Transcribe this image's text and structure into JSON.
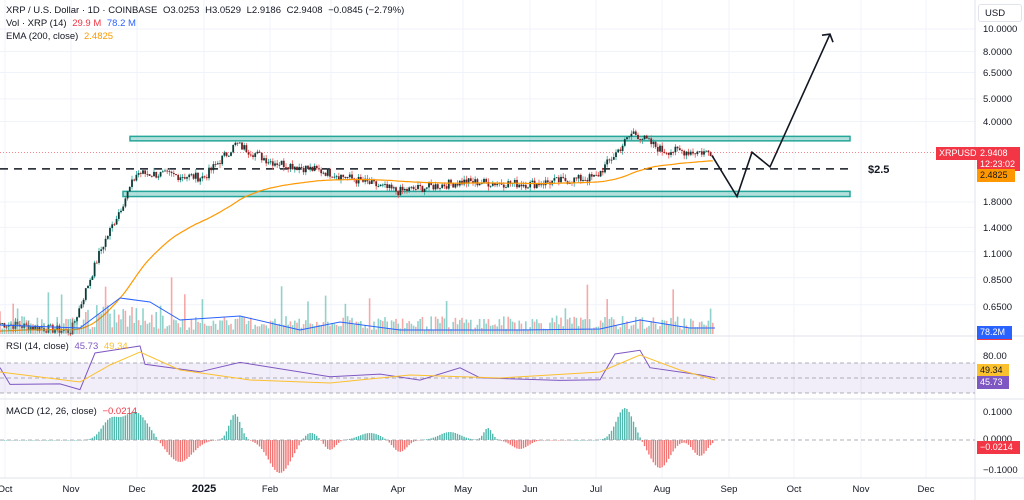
{
  "header": {
    "symbol_title": "XRP / U.S. Dollar · 1D · COINBASE",
    "open": "O3.0253",
    "high": "H3.0529",
    "low": "L2.9186",
    "close": "C2.9408",
    "change": "−0.0845 (−2.79%)",
    "volume_label": "Vol · XRP (14)",
    "volume_value": "29.9 M",
    "volume_ma": "78.2 M",
    "ema_label": "EMA (200, close)",
    "ema_value": "2.4825"
  },
  "price_axis": {
    "currency": "USD",
    "ticks": [
      "10.0000",
      "8.0000",
      "6.5000",
      "5.0000",
      "4.0000",
      "1.8000",
      "1.4000",
      "1.1000",
      "0.8500",
      "0.6500"
    ],
    "symbol_tag": "XRPUSD",
    "last_price": "2.9408",
    "countdown": "12:23:02",
    "ema_tag": "2.4825",
    "volume_tag": "78.2M"
  },
  "rsi": {
    "label": "RSI (14, close)",
    "value": "45.73",
    "ma_value": "49.34",
    "ticks": [
      "80.00"
    ],
    "rsi_tag": "45.73",
    "ma_tag": "49.34"
  },
  "macd": {
    "label": "MACD (12, 26, close)",
    "value": "−0.0214",
    "ticks": [
      "0.1000",
      "0.0000",
      "−0.1000"
    ],
    "tag": "−0.0214"
  },
  "annotations": {
    "level_label": "$2.5"
  },
  "time_axis": {
    "labels": [
      "Oct",
      "Nov",
      "Dec",
      "2025",
      "Feb",
      "Mar",
      "Apr",
      "May",
      "Jun",
      "Jul",
      "Aug",
      "Sep",
      "Oct",
      "Nov",
      "Dec"
    ]
  },
  "colors": {
    "up": "#26a69a",
    "down": "#ef5350",
    "ema": "#ff9800",
    "volume_ma": "#2962ff",
    "rsi": "#7e57c2",
    "rsi_ma": "#fbc02d",
    "zone": "#26a69a"
  },
  "chart_data": {
    "type": "candlestick",
    "title": "XRP / U.S. Dollar · 1D · COINBASE",
    "xlabel": "",
    "ylabel": "USD",
    "y_scale": "log",
    "ylim": [
      0.45,
      11.5
    ],
    "x_ticks": [
      "Oct",
      "Nov",
      "Dec",
      "2025",
      "Feb",
      "Mar",
      "Apr",
      "May",
      "Jun",
      "Jul",
      "Aug",
      "Sep",
      "Oct",
      "Nov",
      "Dec"
    ],
    "y_ticks": [
      10.0,
      8.0,
      6.5,
      5.0,
      4.0,
      1.8,
      1.4,
      1.1,
      0.85,
      0.65
    ],
    "approx_close_series": {
      "x": [
        "Oct 2024",
        "Nov 2024",
        "mid Nov 2024",
        "Dec 2024",
        "2025",
        "mid Jan 2025",
        "Feb 2025",
        "Mar 2025",
        "Apr 2025",
        "May 2025",
        "Jun 2025",
        "Jul 2025",
        "mid Jul 2025",
        "Aug 2025",
        "late Aug 2025"
      ],
      "values": [
        0.54,
        0.5,
        1.1,
        2.4,
        2.3,
        3.2,
        2.7,
        2.4,
        2.0,
        2.2,
        2.15,
        2.3,
        3.6,
        3.0,
        2.94
      ]
    },
    "last": {
      "open": 3.0253,
      "high": 3.0529,
      "low": 2.9186,
      "close": 2.9408,
      "change": -0.0845,
      "change_pct": -2.79
    },
    "ema200": 2.4825,
    "volume": {
      "last": "29.9M",
      "ma14": "78.2M"
    },
    "zones": [
      {
        "name": "resistance",
        "price_range": [
          3.3,
          3.45
        ]
      },
      {
        "name": "support",
        "price_range": [
          1.9,
          2.0
        ]
      }
    ],
    "horizontal_levels": [
      {
        "label": "$2.5",
        "price": 2.5,
        "style": "dashed"
      }
    ],
    "projection_path": {
      "description": "Drawn path: drop to ~1.9 support, bounce to ~3.0, dip to ~2.55, then rally toward ~10",
      "points_price": [
        2.9,
        1.9,
        3.0,
        2.55,
        9.5
      ]
    },
    "rsi": {
      "value": 45.73,
      "ma": 49.34,
      "bands": [
        70,
        50,
        30
      ]
    },
    "macd": {
      "histogram_last": -0.0214,
      "range": [
        -0.1,
        0.12
      ]
    },
    "legend": [
      "Vol · XRP (14)",
      "EMA (200, close)",
      "RSI (14, close)",
      "MACD (12, 26, close)"
    ]
  }
}
